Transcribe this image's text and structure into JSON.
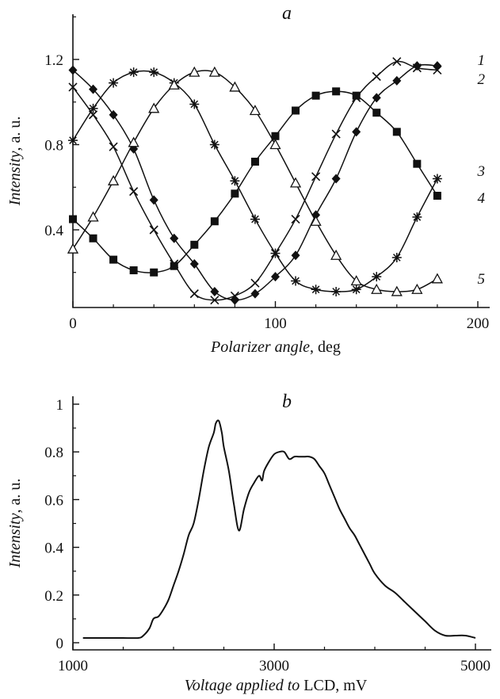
{
  "chart_data": [
    {
      "type": "line",
      "panel_label": "a",
      "xlabel_italic": "Polarizer angle",
      "xlabel_rest": ", deg",
      "ylabel_italic": "Intensity",
      "ylabel_rest": ", a. u.",
      "xlim": [
        0,
        210
      ],
      "ylim": [
        0.05,
        1.45
      ],
      "xticks": [
        0,
        100,
        200
      ],
      "xtick_labels": [
        "0",
        "100",
        "200"
      ],
      "yticks": [
        0.4,
        0.8,
        1.2
      ],
      "ytick_labels": [
        "0.4",
        "0.8",
        "1.2"
      ],
      "grid": false,
      "marker_x": [
        0,
        10,
        20,
        30,
        40,
        50,
        60,
        70,
        80,
        90,
        100,
        110,
        120,
        130,
        140,
        150,
        160,
        170,
        180
      ],
      "series": [
        {
          "name": "1",
          "marker": "diamond-filled",
          "values": [
            1.15,
            1.06,
            0.94,
            0.78,
            0.54,
            0.36,
            0.24,
            0.11,
            0.07,
            0.1,
            0.18,
            0.28,
            0.47,
            0.64,
            0.86,
            1.02,
            1.1,
            1.17,
            1.17
          ]
        },
        {
          "name": "2",
          "marker": "cross",
          "values": [
            1.07,
            0.94,
            0.79,
            0.58,
            0.4,
            0.24,
            0.1,
            0.07,
            0.09,
            0.15,
            0.29,
            0.45,
            0.65,
            0.85,
            1.02,
            1.12,
            1.19,
            1.16,
            1.15
          ]
        },
        {
          "name": "3",
          "marker": "asterisk",
          "values": [
            0.82,
            0.97,
            1.09,
            1.14,
            1.14,
            1.09,
            0.99,
            0.8,
            0.63,
            0.45,
            0.29,
            0.16,
            0.12,
            0.11,
            0.12,
            0.18,
            0.27,
            0.46,
            0.64
          ]
        },
        {
          "name": "4",
          "marker": "square-filled",
          "values": [
            0.45,
            0.36,
            0.26,
            0.21,
            0.2,
            0.23,
            0.33,
            0.44,
            0.57,
            0.72,
            0.84,
            0.96,
            1.03,
            1.05,
            1.03,
            0.95,
            0.86,
            0.71,
            0.56
          ]
        },
        {
          "name": "5",
          "marker": "triangle-open",
          "values": [
            0.31,
            0.46,
            0.63,
            0.81,
            0.97,
            1.08,
            1.14,
            1.14,
            1.07,
            0.96,
            0.8,
            0.62,
            0.44,
            0.28,
            0.16,
            0.12,
            0.11,
            0.12,
            0.17
          ]
        }
      ]
    },
    {
      "type": "line",
      "panel_label": "b",
      "xlabel_italic": "Voltage applied to",
      "xlabel_rest": " LCD, mV",
      "ylabel_italic": "Intensity",
      "ylabel_rest": ", a. u.",
      "xlim": [
        1000,
        5100
      ],
      "ylim": [
        0,
        1.05
      ],
      "xticks": [
        1000,
        3000,
        5000
      ],
      "xtick_labels": [
        "1000",
        "3000",
        "5000"
      ],
      "yticks": [
        0,
        0.2,
        0.4,
        0.6,
        0.8,
        1
      ],
      "ytick_labels": [
        "0",
        "0.2",
        "0.4",
        "0.6",
        "0.8",
        "1"
      ],
      "grid": false,
      "x": [
        1100,
        1300,
        1500,
        1650,
        1700,
        1760,
        1800,
        1850,
        1900,
        1950,
        2000,
        2050,
        2100,
        2150,
        2200,
        2250,
        2300,
        2350,
        2400,
        2420,
        2450,
        2480,
        2500,
        2550,
        2600,
        2650,
        2700,
        2750,
        2800,
        2850,
        2880,
        2900,
        2950,
        3000,
        3050,
        3100,
        3150,
        3200,
        3250,
        3300,
        3350,
        3400,
        3450,
        3500,
        3550,
        3600,
        3650,
        3700,
        3750,
        3800,
        3850,
        3900,
        3950,
        4000,
        4100,
        4200,
        4300,
        4400,
        4500,
        4600,
        4700,
        4800,
        4900,
        5000
      ],
      "values": [
        0.02,
        0.02,
        0.02,
        0.02,
        0.03,
        0.06,
        0.1,
        0.11,
        0.14,
        0.18,
        0.24,
        0.3,
        0.37,
        0.45,
        0.5,
        0.6,
        0.72,
        0.82,
        0.88,
        0.92,
        0.93,
        0.88,
        0.82,
        0.72,
        0.58,
        0.47,
        0.56,
        0.63,
        0.67,
        0.7,
        0.68,
        0.72,
        0.76,
        0.79,
        0.8,
        0.8,
        0.77,
        0.78,
        0.78,
        0.78,
        0.78,
        0.77,
        0.74,
        0.71,
        0.66,
        0.61,
        0.56,
        0.52,
        0.48,
        0.45,
        0.41,
        0.37,
        0.33,
        0.29,
        0.24,
        0.21,
        0.17,
        0.13,
        0.09,
        0.05,
        0.03,
        0.03,
        0.03,
        0.02
      ]
    }
  ]
}
